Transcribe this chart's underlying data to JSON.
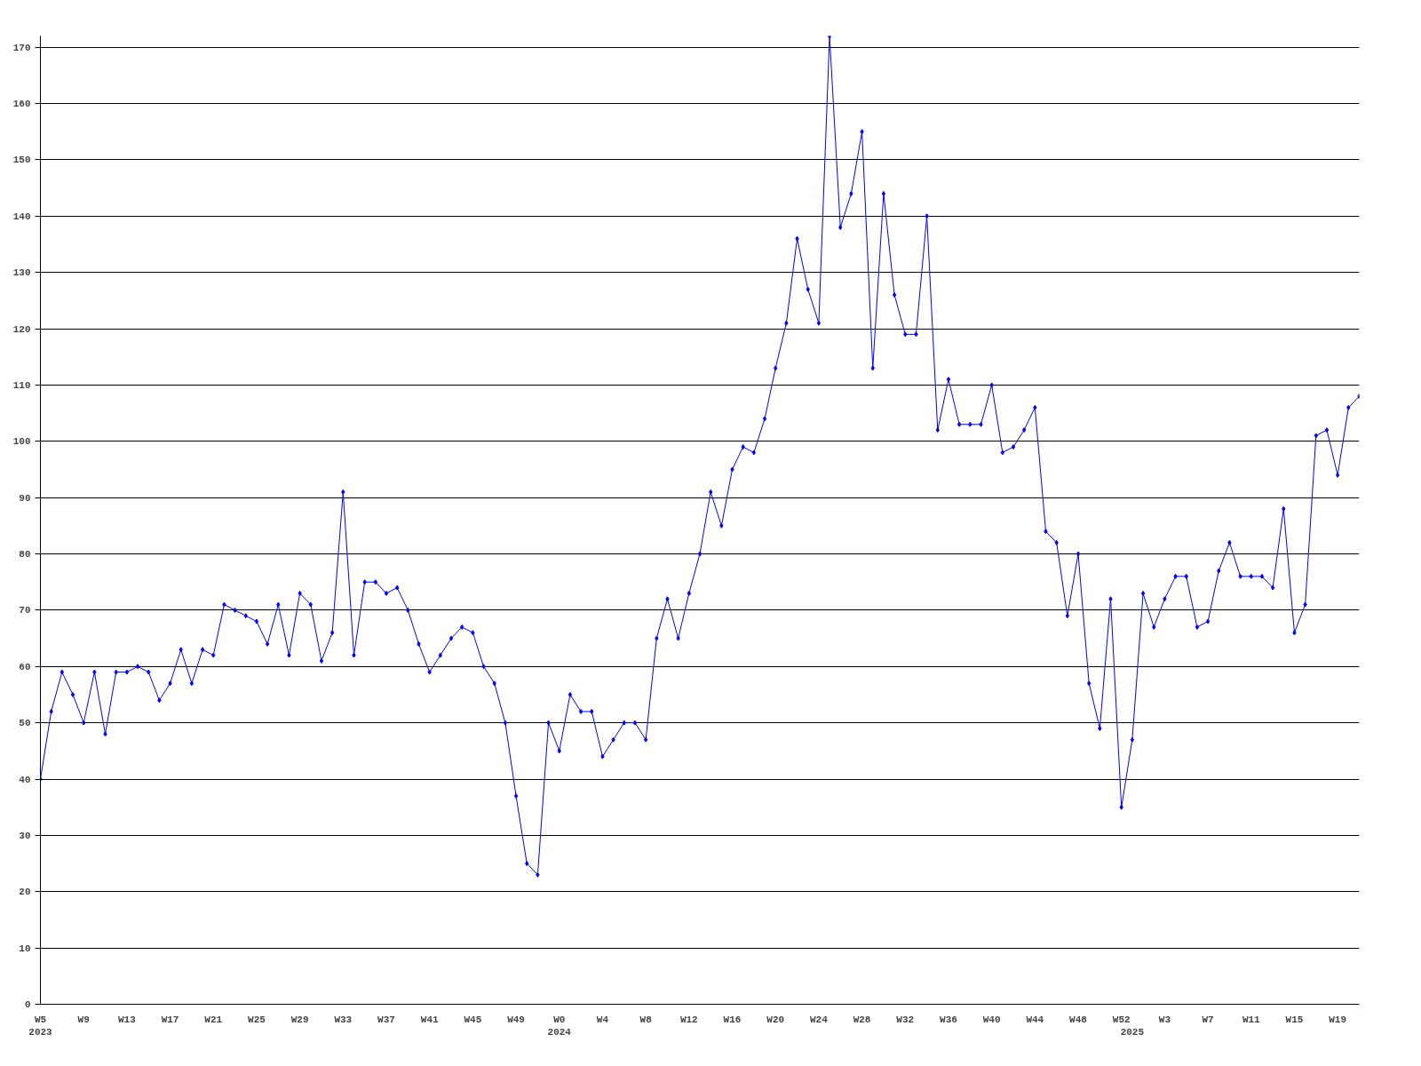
{
  "chart_data": {
    "type": "line",
    "categories": [
      "W5\n2023",
      null,
      null,
      null,
      "W9",
      null,
      null,
      null,
      "W13",
      null,
      null,
      null,
      "W17",
      null,
      null,
      null,
      "W21",
      null,
      null,
      null,
      "W25",
      null,
      null,
      null,
      "W29",
      null,
      null,
      null,
      "W33",
      null,
      null,
      null,
      "W37",
      null,
      null,
      null,
      "W41",
      null,
      null,
      null,
      "W45",
      null,
      null,
      null,
      "W49",
      null,
      null,
      null,
      "W0\n2024",
      null,
      null,
      null,
      "W4",
      null,
      null,
      null,
      "W8",
      null,
      null,
      null,
      "W12",
      null,
      null,
      null,
      "W16",
      null,
      null,
      null,
      "W20",
      null,
      null,
      null,
      "W24",
      null,
      null,
      null,
      "W28",
      null,
      null,
      null,
      "W32",
      null,
      null,
      null,
      "W36",
      null,
      null,
      null,
      "W40",
      null,
      null,
      null,
      "W44",
      null,
      null,
      null,
      "W48",
      null,
      null,
      null,
      "W52",
      "\n2025",
      null,
      null,
      "W3",
      null,
      null,
      null,
      "W7",
      null,
      null,
      null,
      "W11",
      null,
      null,
      null,
      "W15",
      null,
      null,
      null,
      "W19",
      null,
      null
    ],
    "series": [
      {
        "color": "#0000ff",
        "values": [
          40,
          52,
          59,
          55,
          50,
          59,
          48,
          59,
          59,
          60,
          59,
          54,
          57,
          63,
          57,
          63,
          62,
          71,
          70,
          69,
          68,
          64,
          71,
          62,
          73,
          71,
          61,
          66,
          91,
          62,
          75,
          75,
          73,
          74,
          70,
          64,
          59,
          62,
          65,
          67,
          66,
          60,
          57,
          50,
          37,
          25,
          23,
          50,
          45,
          55,
          52,
          52,
          44,
          47,
          50,
          50,
          47,
          65,
          72,
          65,
          73,
          80,
          91,
          85,
          95,
          99,
          98,
          104,
          113,
          121,
          136,
          127,
          121,
          172,
          138,
          144,
          155,
          113,
          144,
          126,
          119,
          119,
          140,
          102,
          111,
          103,
          103,
          103,
          110,
          98,
          99,
          102,
          106,
          84,
          82,
          69,
          80,
          57,
          49,
          72,
          35,
          47,
          73,
          67,
          72,
          76,
          76,
          67,
          68,
          77,
          82,
          76,
          76,
          76,
          74,
          88,
          66,
          71,
          101,
          102,
          94,
          106,
          108
        ]
      }
    ],
    "ylim": [
      0,
      172
    ],
    "yticks": [
      0,
      10,
      20,
      30,
      40,
      50,
      60,
      70,
      80,
      90,
      100,
      110,
      120,
      130,
      140,
      150,
      160,
      170
    ],
    "grid": "y",
    "marker": "diamond",
    "line_style": "solid"
  }
}
